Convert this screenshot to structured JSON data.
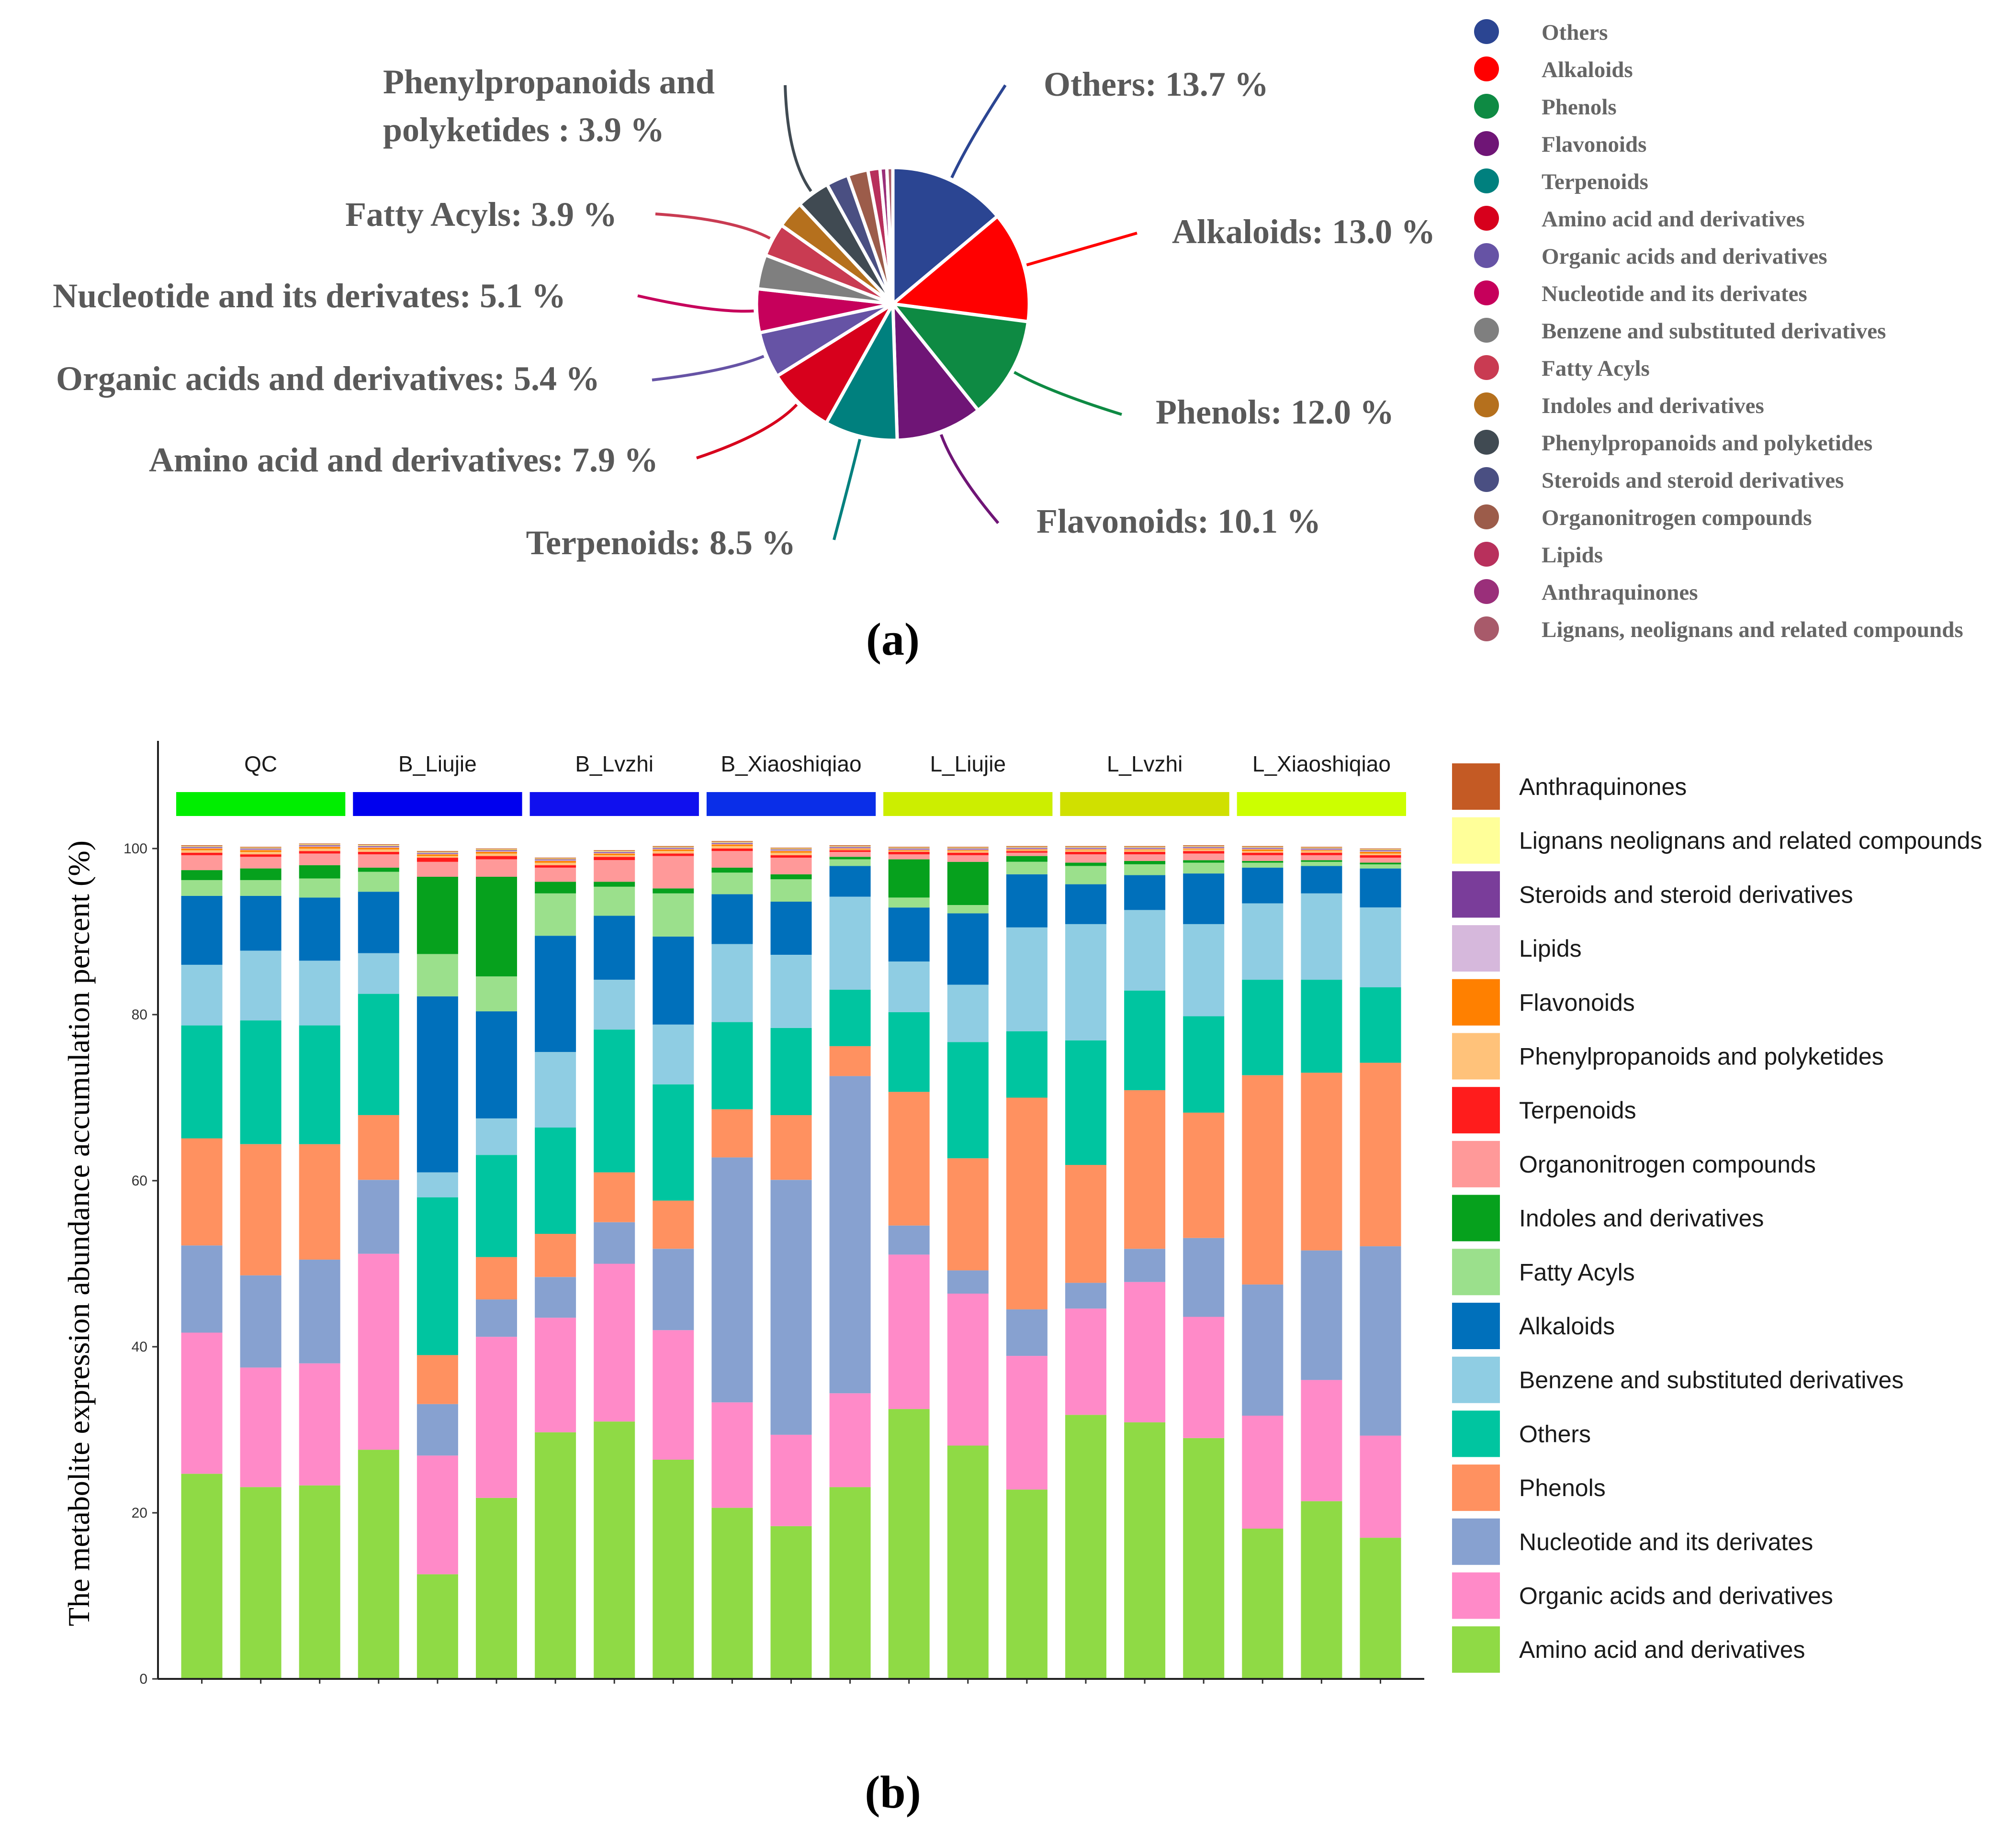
{
  "panel_a_label": "(a)",
  "panel_b_label": "(b)",
  "chart_data": [
    {
      "type": "pie",
      "panel": "(a)",
      "categories": [
        "Others",
        "Alkaloids",
        "Phenols",
        "Flavonoids",
        "Terpenoids",
        "Amino acid and derivatives",
        "Organic acids and derivatives",
        "Nucleotide and its derivates",
        "Benzene and substituted derivatives",
        "Fatty Acyls",
        "Indoles and derivatives",
        "Phenylpropanoids and polyketides",
        "Steroids and steroid derivatives",
        "Organonitrogen compounds",
        "Lipids",
        "Anthraquinones",
        "Lignans, neolignans and related compounds"
      ],
      "values": [
        13.7,
        13.0,
        12.0,
        10.1,
        8.5,
        7.9,
        5.4,
        5.1,
        4.0,
        3.9,
        3.2,
        3.9,
        2.6,
        2.4,
        1.4,
        0.8,
        0.7
      ],
      "colors": [
        "#2b4592",
        "#ff0000",
        "#0e8a43",
        "#6f1576",
        "#00807e",
        "#d7001c",
        "#6653a5",
        "#c6005b",
        "#7f7f7f",
        "#c93b52",
        "#b5701d",
        "#404a52",
        "#4a4f82",
        "#9c5c4a",
        "#b8305c",
        "#9a2f7a",
        "#a85a6a"
      ],
      "labels": [
        {
          "category": "Others",
          "text": "Others: 13.7 %"
        },
        {
          "category": "Alkaloids",
          "text": "Alkaloids: 13.0 %"
        },
        {
          "category": "Phenols",
          "text": "Phenols: 12.0 %"
        },
        {
          "category": "Flavonoids",
          "text": "Flavonoids: 10.1 %"
        },
        {
          "category": "Terpenoids",
          "text": "Terpenoids: 8.5 %"
        },
        {
          "category": "Amino acid and derivatives",
          "text": "Amino acid and derivatives: 7.9 %"
        },
        {
          "category": "Organic acids and derivatives",
          "text": "Organic acids and derivatives: 5.4 %"
        },
        {
          "category": "Nucleotide and its derivates",
          "text": "Nucleotide and its derivates: 5.1 %"
        },
        {
          "category": "Fatty Acyls",
          "text": "Fatty Acyls: 3.9 %"
        },
        {
          "category": "Phenylpropanoids and polyketides",
          "text": "Phenylpropanoids and polyketides : 3.9 %",
          "lines": [
            "Phenylpropanoids and",
            "polyketides : 3.9 %"
          ]
        }
      ],
      "legend": [
        "Others",
        "Alkaloids",
        "Phenols",
        "Flavonoids",
        "Terpenoids",
        "Amino acid and derivatives",
        "Organic acids and derivatives",
        "Nucleotide and its derivates",
        "Benzene and substituted derivatives",
        "Fatty Acyls",
        "Indoles and derivatives",
        "Phenylpropanoids and polyketides",
        "Steroids and steroid derivatives",
        "Organonitrogen compounds",
        "Lipids",
        "Anthraquinones",
        "Lignans, neolignans and related compounds"
      ],
      "legend_position": "right"
    },
    {
      "type": "bar",
      "stacked": true,
      "panel": "(b)",
      "ylabel": "The metabolite expression abundance accumulation percent (%)",
      "ylim": [
        0,
        100
      ],
      "yticks": [
        0,
        20,
        40,
        60,
        80,
        100
      ],
      "groups": [
        {
          "name": "QC",
          "color": "#00ee00"
        },
        {
          "name": "B_Liujie",
          "color": "#0000ee"
        },
        {
          "name": "B_Lvzhi",
          "color": "#1010ee"
        },
        {
          "name": "B_Xiaoshiqiao",
          "color": "#0a2ee8"
        },
        {
          "name": "L_Liujie",
          "color": "#ccee00"
        },
        {
          "name": "L_Lvzhi",
          "color": "#d0e000"
        },
        {
          "name": "L_Xiaoshiqiao",
          "color": "#ccff00"
        }
      ],
      "samples_per_group": 3,
      "series": [
        {
          "name": "Amino acid and derivatives",
          "color": "#8fda45",
          "values": [
            24.7,
            23.1,
            23.3,
            27.6,
            12.6,
            21.8,
            29.7,
            31.0,
            26.4,
            20.6,
            18.4,
            23.1,
            32.5,
            28.1,
            22.8,
            31.8,
            30.9,
            29.0,
            18.1,
            21.4,
            17.0
          ]
        },
        {
          "name": "Organic acids and derivatives",
          "color": "#ff8ac8",
          "values": [
            17.0,
            14.4,
            14.7,
            23.6,
            14.3,
            19.4,
            13.8,
            19.0,
            15.6,
            12.7,
            11.0,
            11.3,
            18.6,
            18.3,
            16.1,
            12.8,
            16.9,
            14.6,
            13.6,
            14.6,
            12.3
          ]
        },
        {
          "name": "Nucleotide and its derivates",
          "color": "#87a1d0",
          "values": [
            10.5,
            11.1,
            12.5,
            8.9,
            6.2,
            4.5,
            4.9,
            5.0,
            9.8,
            29.5,
            30.7,
            38.2,
            3.5,
            2.8,
            5.6,
            3.1,
            4.0,
            9.5,
            15.8,
            15.6,
            22.8
          ]
        },
        {
          "name": "Phenols",
          "color": "#ff9160",
          "values": [
            12.9,
            15.8,
            13.9,
            7.8,
            5.9,
            5.1,
            5.2,
            6.0,
            5.8,
            5.8,
            7.8,
            3.6,
            16.1,
            13.5,
            25.5,
            14.2,
            19.1,
            15.1,
            25.2,
            21.4,
            22.1
          ]
        },
        {
          "name": "Others",
          "color": "#00c5a0",
          "values": [
            13.6,
            14.9,
            14.3,
            14.6,
            19.0,
            12.3,
            12.8,
            17.2,
            14.0,
            10.5,
            10.5,
            6.8,
            9.6,
            14.0,
            8.0,
            15.0,
            12.0,
            11.6,
            11.5,
            11.2,
            9.1
          ]
        },
        {
          "name": "Benzene and substituted derivatives",
          "color": "#8fcde3",
          "values": [
            7.3,
            8.4,
            7.8,
            4.9,
            3.0,
            4.4,
            9.1,
            6.0,
            7.2,
            9.4,
            8.8,
            11.2,
            6.1,
            6.9,
            12.5,
            14.0,
            9.7,
            11.1,
            9.2,
            10.4,
            9.6
          ]
        },
        {
          "name": "Alkaloids",
          "color": "#0070bb",
          "values": [
            8.3,
            6.6,
            7.6,
            7.4,
            21.2,
            12.9,
            14.0,
            7.7,
            10.6,
            6.0,
            6.4,
            3.7,
            6.5,
            8.6,
            6.4,
            4.8,
            4.2,
            6.1,
            4.3,
            3.3,
            4.7
          ]
        },
        {
          "name": "Fatty Acyls",
          "color": "#9be08c",
          "values": [
            1.9,
            1.9,
            2.3,
            2.4,
            5.1,
            4.2,
            5.1,
            3.5,
            5.2,
            2.6,
            2.7,
            0.8,
            1.2,
            1.0,
            1.5,
            2.2,
            1.3,
            1.3,
            0.6,
            0.5,
            0.5
          ]
        },
        {
          "name": "Indoles and derivatives",
          "color": "#06a11d",
          "values": [
            1.2,
            1.4,
            1.6,
            0.5,
            9.3,
            12.0,
            1.4,
            0.6,
            0.6,
            0.6,
            0.6,
            0.3,
            4.6,
            5.2,
            0.7,
            0.4,
            0.4,
            0.3,
            0.2,
            0.2,
            0.2
          ]
        },
        {
          "name": "Organonitrogen compounds",
          "color": "#ff9999",
          "values": [
            1.8,
            1.4,
            1.4,
            1.6,
            1.8,
            2.1,
            1.7,
            2.6,
            3.9,
            2.0,
            2.0,
            0.6,
            0.6,
            0.8,
            0.4,
            1.0,
            0.8,
            0.8,
            0.7,
            0.6,
            0.6
          ]
        },
        {
          "name": "Terpenoids",
          "color": "#ff1c1c",
          "values": [
            0.3,
            0.3,
            0.3,
            0.3,
            0.5,
            0.4,
            0.3,
            0.4,
            0.3,
            0.3,
            0.3,
            0.2,
            0.3,
            0.3,
            0.2,
            0.3,
            0.3,
            0.3,
            0.3,
            0.3,
            0.3
          ]
        },
        {
          "name": "Phenylpropanoids and polyketides",
          "color": "#ffc27a",
          "values": [
            0.3,
            0.3,
            0.3,
            0.3,
            0.2,
            0.3,
            0.3,
            0.2,
            0.3,
            0.3,
            0.3,
            0.1,
            0.1,
            0.2,
            0.1,
            0.2,
            0.2,
            0.2,
            0.2,
            0.2,
            0.2
          ]
        },
        {
          "name": "Flavonoids",
          "color": "#ff8000",
          "values": [
            0.2,
            0.2,
            0.2,
            0.2,
            0.2,
            0.2,
            0.2,
            0.2,
            0.2,
            0.2,
            0.2,
            0.1,
            0.1,
            0.1,
            0.1,
            0.1,
            0.1,
            0.1,
            0.2,
            0.1,
            0.2
          ]
        },
        {
          "name": "Lipids",
          "color": "#d6b8dc",
          "values": [
            0.1,
            0.1,
            0.1,
            0.1,
            0.1,
            0.1,
            0.1,
            0.1,
            0.1,
            0.1,
            0.1,
            0.1,
            0.1,
            0.1,
            0.1,
            0.1,
            0.1,
            0.1,
            0.1,
            0.1,
            0.1
          ]
        },
        {
          "name": "Steroids and steroid derivatives",
          "color": "#7a3d9a",
          "values": [
            0.1,
            0.1,
            0.1,
            0.1,
            0.1,
            0.1,
            0.1,
            0.1,
            0.1,
            0.1,
            0.1,
            0.1,
            0.1,
            0.1,
            0.1,
            0.1,
            0.1,
            0.1,
            0.1,
            0.1,
            0.1
          ]
        },
        {
          "name": "Lignans neolignans and related compounds",
          "color": "#ffff99",
          "values": [
            0.1,
            0.1,
            0.1,
            0.1,
            0.1,
            0.1,
            0.1,
            0.1,
            0.1,
            0.1,
            0.1,
            0.1,
            0.1,
            0.1,
            0.1,
            0.1,
            0.1,
            0.1,
            0.1,
            0.1,
            0.1
          ]
        },
        {
          "name": "Anthraquinones",
          "color": "#c45a24",
          "values": [
            0.1,
            0.1,
            0.1,
            0.1,
            0.1,
            0.1,
            0.1,
            0.1,
            0.1,
            0.1,
            0.1,
            0.1,
            0.1,
            0.1,
            0.1,
            0.1,
            0.1,
            0.1,
            0.1,
            0.1,
            0.1
          ]
        }
      ],
      "legend": [
        "Anthraquinones",
        "Lignans neolignans and related compounds",
        "Steroids and steroid derivatives",
        "Lipids",
        "Flavonoids",
        "Phenylpropanoids and polyketides",
        "Terpenoids",
        "Organonitrogen compounds",
        "Indoles and derivatives",
        "Fatty Acyls",
        "Alkaloids",
        "Benzene and substituted derivatives",
        "Others",
        "Phenols",
        "Nucleotide and its derivates",
        "Organic acids and derivatives",
        "Amino acid and derivatives"
      ],
      "legend_position": "right"
    }
  ]
}
